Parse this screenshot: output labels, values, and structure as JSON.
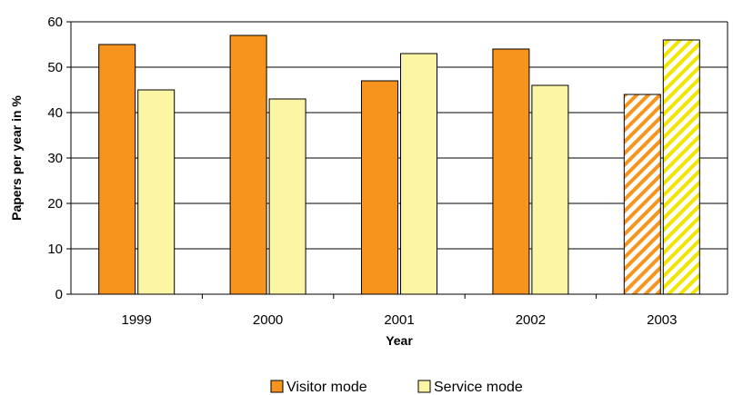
{
  "chart_data": {
    "type": "bar",
    "title": "",
    "xlabel": "Year",
    "ylabel": "Papers per year in %",
    "categories": [
      "1999",
      "2000",
      "2001",
      "2002",
      "2003"
    ],
    "ylim": [
      0,
      60
    ],
    "yticks": [
      0,
      10,
      20,
      30,
      40,
      50,
      60
    ],
    "grid": true,
    "legend_position": "bottom",
    "series": [
      {
        "name": "Visitor mode",
        "values": [
          55,
          57,
          47,
          54,
          44
        ],
        "color": "#f7941d"
      },
      {
        "name": "Service mode",
        "values": [
          45,
          43,
          53,
          46,
          56
        ],
        "color": "#fcf6a4"
      }
    ],
    "hatched_categories": [
      "2003"
    ]
  }
}
